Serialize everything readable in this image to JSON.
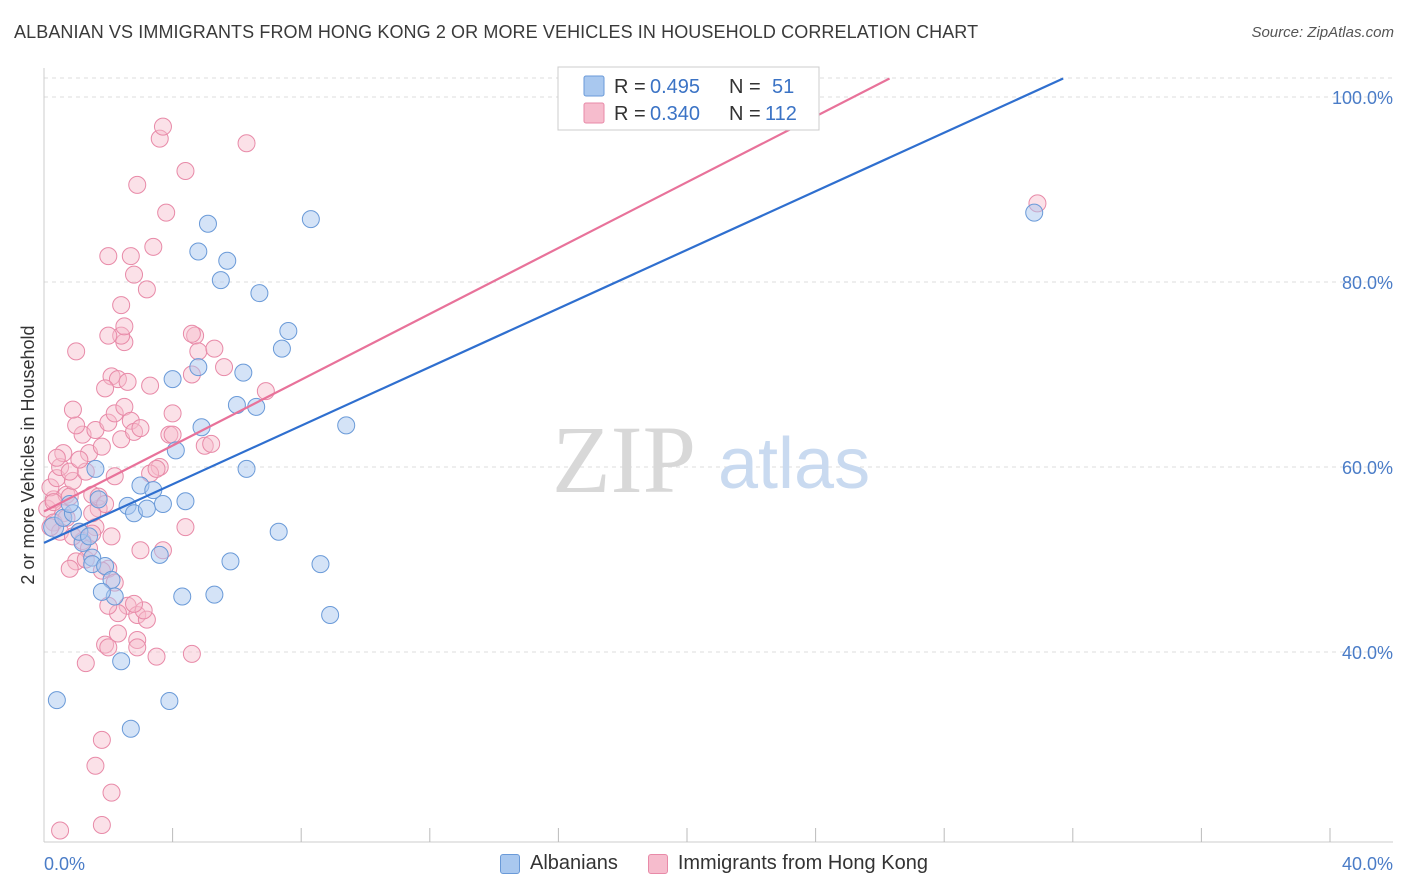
{
  "title": "ALBANIAN VS IMMIGRANTS FROM HONG KONG 2 OR MORE VEHICLES IN HOUSEHOLD CORRELATION CHART",
  "source": "Source: ZipAtlas.com",
  "watermark": {
    "zip": "ZIP",
    "atlas": "atlas"
  },
  "legend_box": {
    "rows": [
      {
        "r_label": "R =",
        "r_value": "0.495",
        "n_label": "N =",
        "n_value": "51"
      },
      {
        "r_label": "R =",
        "r_value": "0.340",
        "n_label": "N =",
        "n_value": "112"
      }
    ]
  },
  "colors": {
    "blue_fill": "#a9c8ef",
    "blue_stroke": "#6a9ad8",
    "blue_line": "#2f6fcf",
    "pink_fill": "#f6bccd",
    "pink_stroke": "#e88aa8",
    "pink_line": "#e8729a",
    "accent_text": "#3b73c5",
    "grid": "#dddddd"
  },
  "chart_data": {
    "type": "scatter",
    "title": "ALBANIAN VS IMMIGRANTS FROM HONG KONG 2 OR MORE VEHICLES IN HOUSEHOLD CORRELATION CHART",
    "xlabel": "",
    "ylabel": "2 or more Vehicles in Household",
    "xlim": [
      0,
      40
    ],
    "ylim": [
      20,
      102
    ],
    "x_tick_labels": [
      {
        "value": 0,
        "label": "0.0%"
      },
      {
        "value": 40,
        "label": "40.0%"
      }
    ],
    "y_tick_labels": [
      {
        "value": 40,
        "label": "40.0%"
      },
      {
        "value": 60,
        "label": "60.0%"
      },
      {
        "value": 80,
        "label": "80.0%"
      },
      {
        "value": 100,
        "label": "100.0%"
      }
    ],
    "x_minor_ticks": [
      4,
      8,
      12,
      16,
      20,
      24,
      28,
      32,
      36,
      40
    ],
    "legend": [
      "Albanians",
      "Immigrants from Hong Kong"
    ],
    "series": [
      {
        "name": "Albanians",
        "r": 0.495,
        "n": 51,
        "trend": {
          "x": [
            0,
            31.7
          ],
          "y": [
            51.8,
            102
          ]
        },
        "points": [
          [
            0.3,
            53.5
          ],
          [
            0.6,
            54.5
          ],
          [
            0.9,
            55.0
          ],
          [
            0.8,
            56.0
          ],
          [
            1.2,
            51.8
          ],
          [
            1.5,
            50.2
          ],
          [
            1.1,
            53.0
          ],
          [
            1.5,
            49.5
          ],
          [
            1.9,
            49.3
          ],
          [
            2.1,
            47.8
          ],
          [
            2.2,
            46.0
          ],
          [
            1.8,
            46.5
          ],
          [
            1.6,
            59.8
          ],
          [
            1.7,
            56.5
          ],
          [
            2.6,
            55.8
          ],
          [
            2.8,
            55.0
          ],
          [
            3.2,
            55.5
          ],
          [
            3.0,
            58.0
          ],
          [
            3.4,
            57.5
          ],
          [
            3.7,
            56.0
          ],
          [
            4.4,
            56.3
          ],
          [
            3.6,
            50.5
          ],
          [
            4.3,
            46.0
          ],
          [
            5.3,
            46.2
          ],
          [
            5.8,
            49.8
          ],
          [
            6.3,
            59.8
          ],
          [
            4.1,
            61.8
          ],
          [
            4.9,
            64.3
          ],
          [
            6.0,
            66.7
          ],
          [
            6.6,
            66.5
          ],
          [
            4.0,
            69.5
          ],
          [
            4.8,
            70.8
          ],
          [
            6.2,
            70.2
          ],
          [
            7.4,
            72.8
          ],
          [
            7.6,
            74.7
          ],
          [
            5.5,
            80.2
          ],
          [
            6.7,
            78.8
          ],
          [
            5.7,
            82.3
          ],
          [
            4.8,
            83.3
          ],
          [
            5.1,
            86.3
          ],
          [
            8.3,
            86.8
          ],
          [
            9.4,
            64.5
          ],
          [
            7.3,
            53.0
          ],
          [
            8.6,
            49.5
          ],
          [
            8.9,
            44.0
          ],
          [
            2.4,
            39.0
          ],
          [
            3.9,
            34.7
          ],
          [
            2.7,
            31.7
          ],
          [
            0.4,
            34.8
          ],
          [
            30.8,
            87.5
          ],
          [
            1.4,
            52.5
          ]
        ]
      },
      {
        "name": "Immigrants from Hong Kong",
        "r": 0.34,
        "n": 112,
        "trend": {
          "x": [
            0,
            26.3
          ],
          "y": [
            55.2,
            102
          ]
        },
        "points": [
          [
            0.1,
            55.5
          ],
          [
            0.3,
            56.5
          ],
          [
            0.2,
            57.8
          ],
          [
            0.4,
            58.8
          ],
          [
            0.5,
            60.0
          ],
          [
            0.6,
            55.0
          ],
          [
            0.7,
            57.0
          ],
          [
            0.3,
            54.0
          ],
          [
            0.5,
            53.0
          ],
          [
            0.8,
            56.8
          ],
          [
            0.9,
            58.5
          ],
          [
            0.6,
            61.5
          ],
          [
            1.1,
            53.0
          ],
          [
            1.2,
            52.0
          ],
          [
            1.0,
            49.8
          ],
          [
            0.8,
            49.0
          ],
          [
            1.3,
            50.0
          ],
          [
            1.4,
            51.2
          ],
          [
            1.6,
            53.5
          ],
          [
            1.7,
            55.5
          ],
          [
            1.5,
            57.0
          ],
          [
            1.3,
            59.5
          ],
          [
            1.4,
            61.5
          ],
          [
            1.2,
            63.5
          ],
          [
            1.0,
            64.5
          ],
          [
            0.9,
            66.2
          ],
          [
            1.6,
            64.0
          ],
          [
            1.8,
            62.2
          ],
          [
            2.0,
            64.8
          ],
          [
            2.2,
            65.8
          ],
          [
            2.5,
            66.5
          ],
          [
            2.7,
            65.0
          ],
          [
            2.4,
            63.0
          ],
          [
            2.8,
            63.8
          ],
          [
            3.0,
            64.2
          ],
          [
            3.3,
            68.8
          ],
          [
            2.1,
            69.8
          ],
          [
            2.3,
            69.5
          ],
          [
            1.9,
            68.5
          ],
          [
            2.6,
            69.2
          ],
          [
            2.5,
            73.5
          ],
          [
            2.4,
            74.2
          ],
          [
            2.5,
            75.2
          ],
          [
            2.0,
            74.2
          ],
          [
            1.0,
            72.5
          ],
          [
            2.4,
            77.5
          ],
          [
            3.2,
            79.2
          ],
          [
            2.8,
            80.8
          ],
          [
            2.0,
            82.8
          ],
          [
            2.7,
            82.8
          ],
          [
            3.4,
            83.8
          ],
          [
            3.8,
            87.5
          ],
          [
            2.9,
            90.5
          ],
          [
            4.4,
            92.0
          ],
          [
            3.6,
            95.5
          ],
          [
            3.7,
            96.8
          ],
          [
            6.3,
            95.0
          ],
          [
            4.7,
            74.2
          ],
          [
            4.6,
            74.4
          ],
          [
            4.8,
            72.5
          ],
          [
            5.3,
            72.8
          ],
          [
            4.6,
            70.0
          ],
          [
            5.6,
            70.8
          ],
          [
            6.9,
            68.2
          ],
          [
            4.0,
            65.8
          ],
          [
            3.9,
            63.5
          ],
          [
            4.0,
            63.5
          ],
          [
            5.0,
            62.3
          ],
          [
            5.2,
            62.5
          ],
          [
            3.6,
            60.0
          ],
          [
            3.3,
            59.3
          ],
          [
            3.5,
            59.8
          ],
          [
            4.4,
            53.5
          ],
          [
            3.7,
            51.0
          ],
          [
            3.0,
            51.0
          ],
          [
            2.1,
            52.5
          ],
          [
            2.0,
            49.0
          ],
          [
            1.8,
            48.8
          ],
          [
            2.6,
            45.0
          ],
          [
            2.3,
            44.2
          ],
          [
            2.9,
            44.0
          ],
          [
            3.2,
            43.5
          ],
          [
            3.1,
            44.5
          ],
          [
            2.3,
            42.0
          ],
          [
            2.9,
            41.3
          ],
          [
            2.9,
            40.5
          ],
          [
            3.5,
            39.5
          ],
          [
            4.6,
            39.8
          ],
          [
            1.9,
            40.8
          ],
          [
            2.0,
            40.5
          ],
          [
            1.3,
            38.8
          ],
          [
            1.8,
            30.5
          ],
          [
            1.6,
            27.7
          ],
          [
            2.1,
            24.8
          ],
          [
            1.8,
            21.3
          ],
          [
            0.5,
            20.7
          ],
          [
            2.0,
            45.0
          ],
          [
            2.2,
            47.5
          ],
          [
            1.7,
            56.8
          ],
          [
            1.9,
            56.0
          ],
          [
            0.8,
            59.5
          ],
          [
            0.4,
            61.0
          ],
          [
            0.2,
            53.5
          ],
          [
            2.8,
            45.2
          ],
          [
            1.5,
            52.8
          ],
          [
            30.9,
            88.5
          ],
          [
            1.1,
            60.8
          ],
          [
            0.9,
            52.5
          ],
          [
            0.3,
            56.2
          ],
          [
            0.7,
            54.5
          ],
          [
            1.5,
            55.0
          ],
          [
            2.2,
            59.0
          ]
        ]
      }
    ]
  }
}
